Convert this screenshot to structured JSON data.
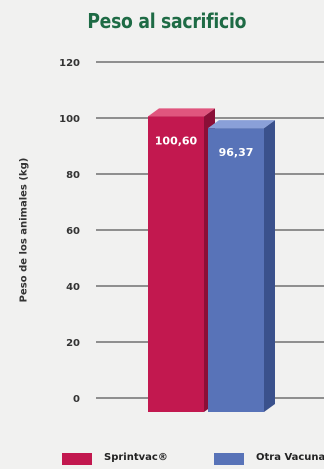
{
  "chart_data": {
    "type": "bar",
    "title": "Peso al sacrificio",
    "ylabel": "Peso de los animales (kg)",
    "ylim": [
      0,
      120
    ],
    "yticks": [
      0,
      20,
      40,
      60,
      80,
      100,
      120
    ],
    "grid": true,
    "categories": [
      "Sprintvac®",
      "Otra Vacuna"
    ],
    "values": [
      100.6,
      96.37
    ],
    "value_labels": [
      "100,60",
      "96,37"
    ],
    "series_colors": [
      "#c2184f",
      "#5873b8"
    ],
    "legend": {
      "placement": "bottom",
      "entries": [
        "Sprintvac®",
        "Otra Vacuna"
      ]
    }
  }
}
